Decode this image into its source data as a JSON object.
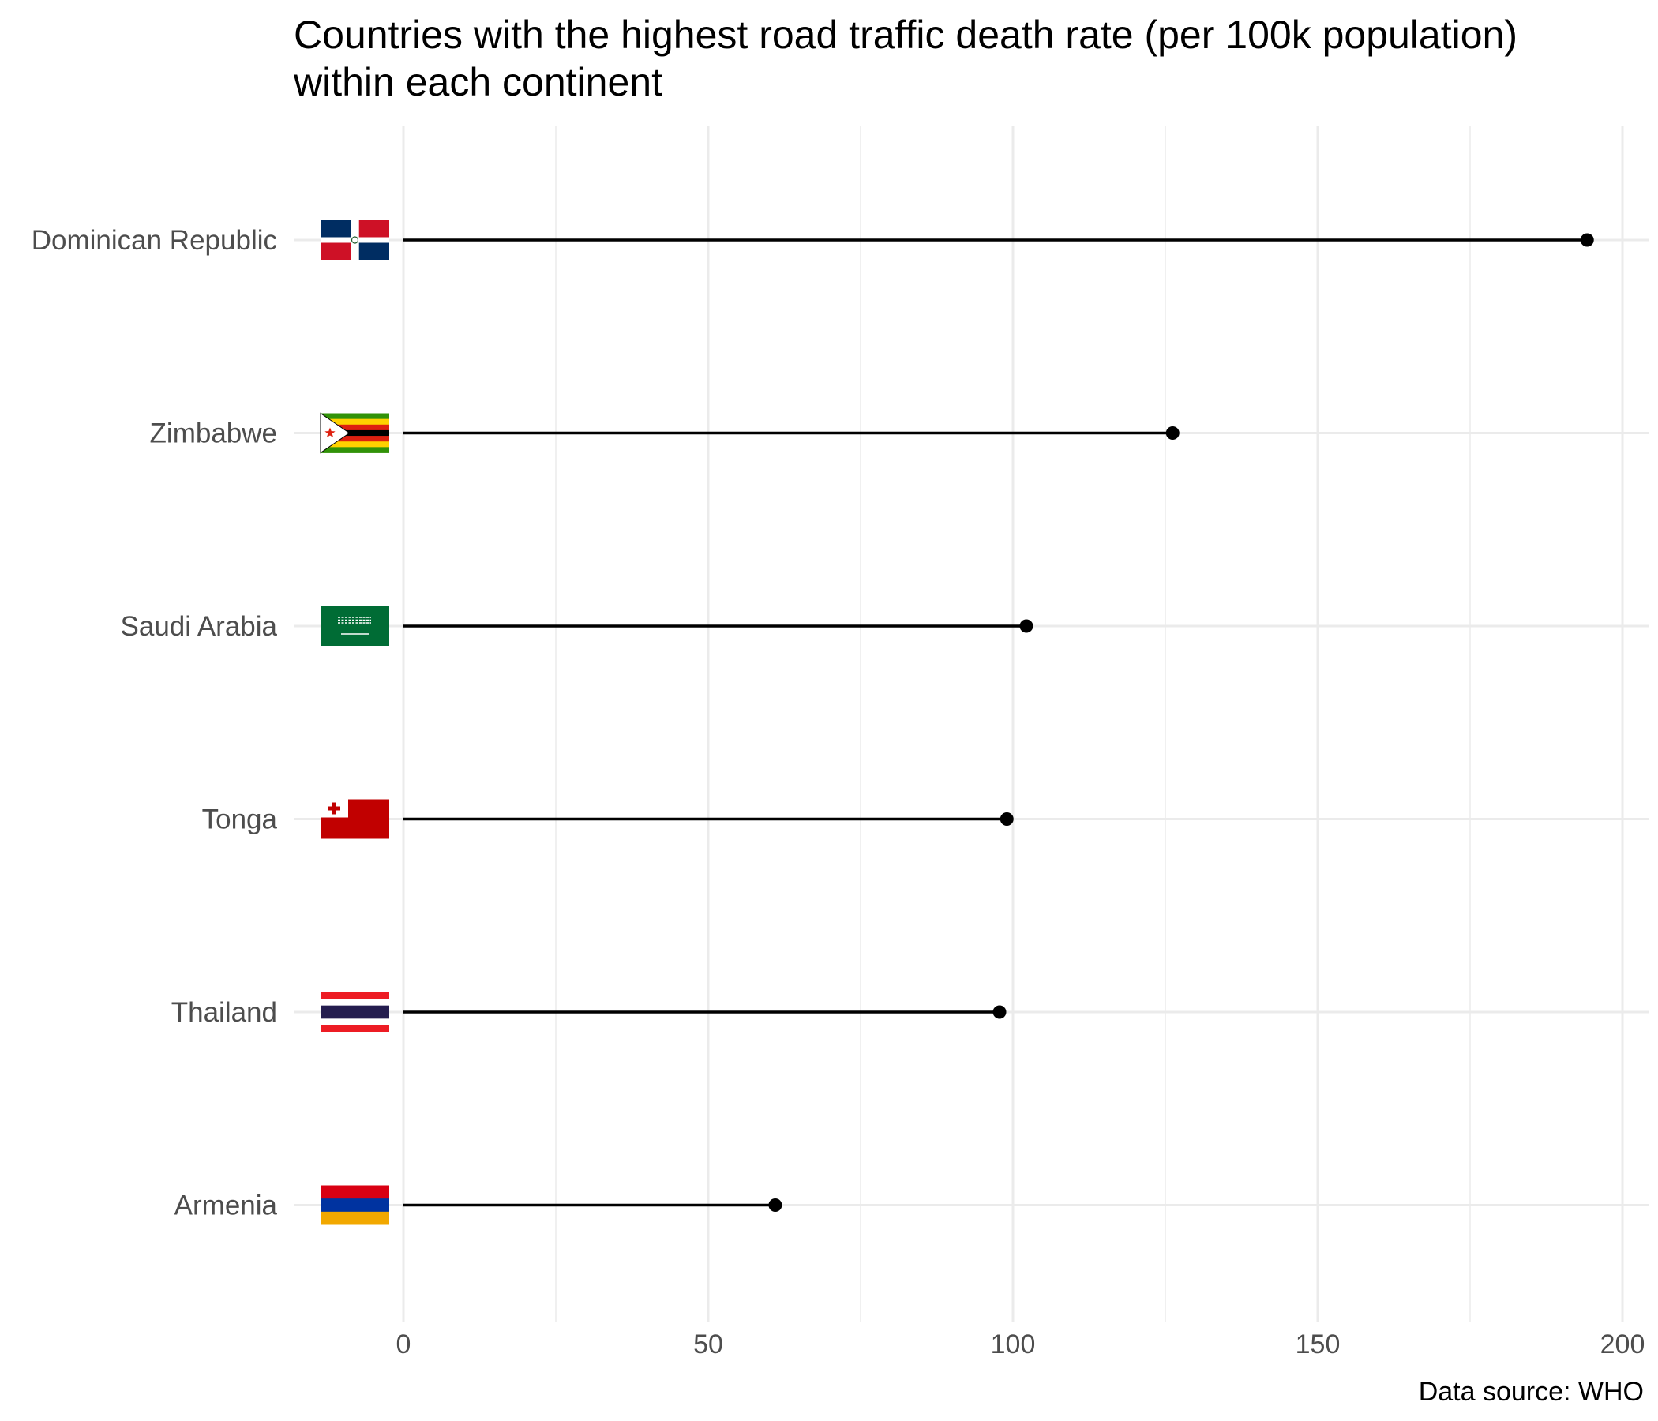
{
  "chart_data": {
    "type": "lollipop",
    "title_lines": [
      "Countries with the highest road traffic death rate (per 100k population)",
      "within each continent"
    ],
    "caption": "Data source: WHO",
    "xlabel": "",
    "ylabel": "",
    "xlim": [
      0,
      200
    ],
    "x_ticks": [
      0,
      50,
      100,
      150,
      200
    ],
    "x_minor_ticks": [
      25,
      75,
      125,
      175
    ],
    "grid": true,
    "categories": [
      "Dominican Republic",
      "Zimbabwe",
      "Saudi Arabia",
      "Tonga",
      "Thailand",
      "Armenia"
    ],
    "values": [
      194.2,
      126.2,
      102.2,
      99.0,
      97.8,
      61.0
    ],
    "flags": [
      "dominican-republic-flag",
      "zimbabwe-flag",
      "saudi-arabia-flag",
      "tonga-flag",
      "thailand-flag",
      "armenia-flag"
    ],
    "colors": {
      "line": "#000000",
      "point": "#000000",
      "grid": "#ebebeb",
      "axis_text": "#4d4d4d"
    }
  }
}
